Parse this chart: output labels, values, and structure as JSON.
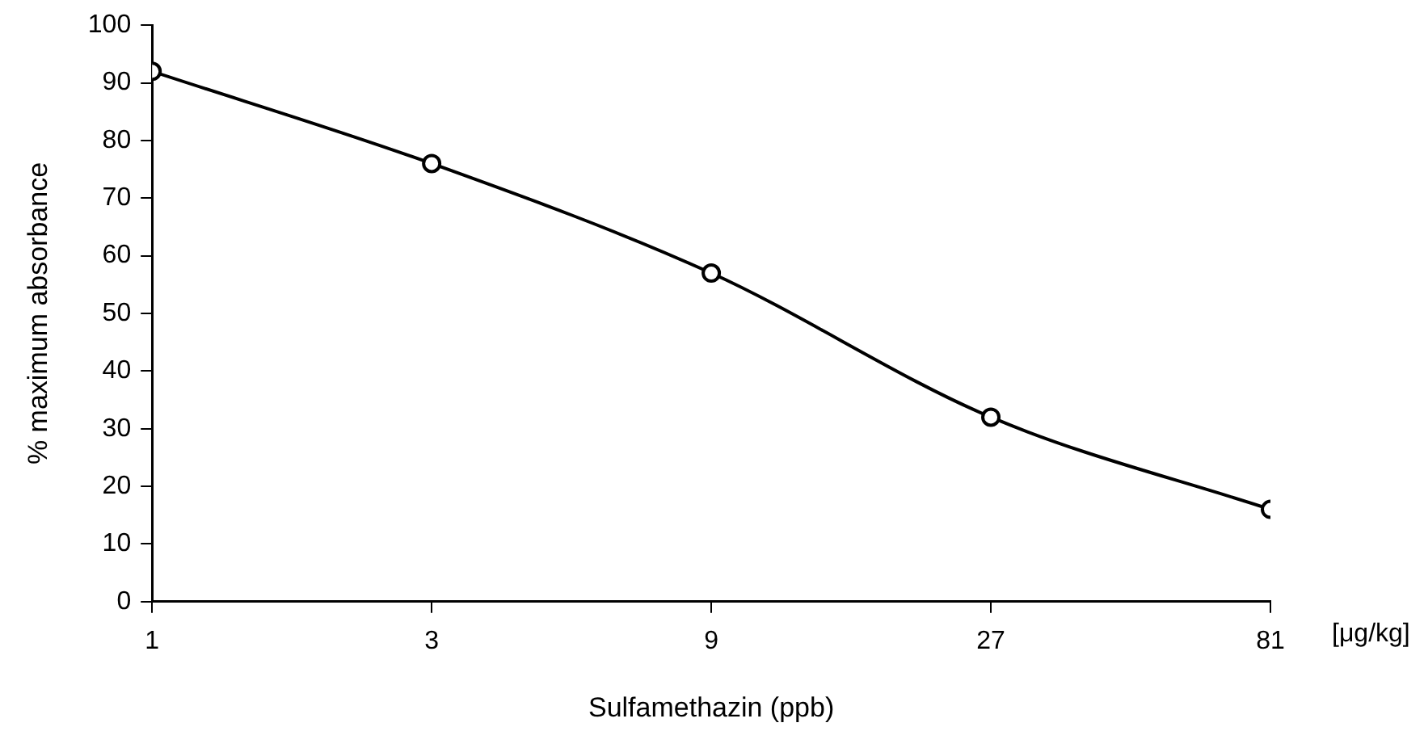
{
  "chart_data": {
    "type": "line",
    "xlabel": "Sulfamethazin (ppb)",
    "ylabel": "% maximum absorbance",
    "x": [
      1,
      3,
      9,
      27,
      81
    ],
    "values": [
      92,
      76,
      57,
      32,
      16
    ],
    "color": "#000000",
    "log": "x",
    "xlim": [
      1,
      81
    ],
    "xticks": [
      1,
      3,
      9,
      27,
      81
    ],
    "ylim": [
      0,
      100
    ],
    "yticks": [
      0,
      10,
      20,
      30,
      40,
      50,
      60,
      70,
      80,
      90,
      100
    ],
    "grid": false,
    "legend": false,
    "marker": "circle",
    "line_style": "solid",
    "annotations": [
      "[μg/kg]"
    ]
  }
}
